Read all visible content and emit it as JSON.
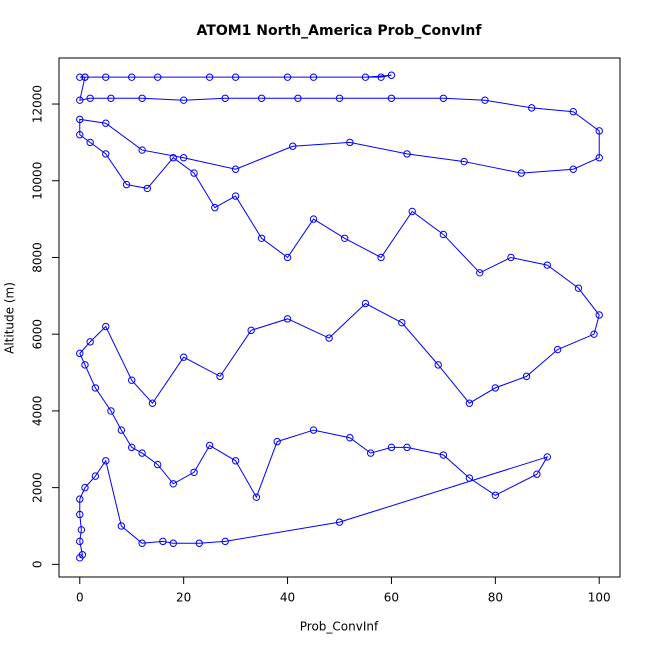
{
  "chart_data": {
    "type": "line",
    "title": "ATOM1 North_America Prob_ConvInf",
    "x_label": "Prob_ConvInf",
    "y_label": "Altitude (m)",
    "xlim": [
      -4,
      104
    ],
    "ylim": [
      -330,
      13200
    ],
    "xticks": [
      0,
      20,
      40,
      60,
      80,
      100
    ],
    "yticks": [
      0,
      2000,
      4000,
      6000,
      8000,
      10000,
      12000
    ],
    "x": [
      0,
      0.5,
      0,
      0.3,
      0,
      0,
      1,
      3,
      5,
      8,
      12,
      16,
      18,
      23,
      28,
      50,
      90,
      88,
      80,
      75,
      70,
      63,
      60,
      56,
      52,
      45,
      38,
      34,
      30,
      25,
      22,
      18,
      15,
      12,
      10,
      8,
      6,
      3,
      1,
      0,
      2,
      5,
      10,
      14,
      20,
      27,
      33,
      40,
      48,
      55,
      62,
      69,
      75,
      80,
      86,
      92,
      99,
      100,
      96,
      90,
      83,
      77,
      70,
      64,
      58,
      51,
      45,
      40,
      35,
      30,
      26,
      22,
      18,
      13,
      9,
      5,
      2,
      0,
      0,
      5,
      12,
      20,
      30,
      41,
      52,
      63,
      74,
      85,
      95,
      100,
      100,
      95,
      87,
      78,
      70,
      60,
      50,
      42,
      35,
      28,
      20,
      12,
      6,
      2,
      0,
      1,
      10,
      25,
      40,
      55,
      60,
      58,
      45,
      30,
      15,
      5,
      1,
      0
    ],
    "series": [
      {
        "color": "#0000ff",
        "values": [
          170,
          250,
          600,
          900,
          1300,
          1700,
          2000,
          2300,
          2700,
          1000,
          550,
          600,
          550,
          550,
          600,
          1100,
          2800,
          2350,
          1800,
          2250,
          2850,
          3050,
          3050,
          2900,
          3300,
          3500,
          3200,
          1750,
          2700,
          3100,
          2400,
          2100,
          2600,
          2900,
          3050,
          3500,
          4000,
          4600,
          5200,
          5500,
          5800,
          6200,
          4800,
          4200,
          5400,
          4900,
          6100,
          6400,
          5900,
          6800,
          6300,
          5200,
          4200,
          4600,
          4900,
          5600,
          6000,
          6500,
          7200,
          7800,
          8000,
          7600,
          8600,
          9200,
          8000,
          8500,
          9000,
          8000,
          8500,
          9600,
          9300,
          10200,
          10600,
          9800,
          9900,
          10700,
          11000,
          11200,
          11600,
          11500,
          10800,
          10600,
          10300,
          10900,
          11000,
          10700,
          10500,
          10200,
          10300,
          10600,
          11300,
          11800,
          11900,
          12100,
          12150,
          12150,
          12150,
          12150,
          12150,
          12150,
          12100,
          12150,
          12150,
          12150,
          12100,
          12700,
          12700,
          12700,
          12700,
          12700,
          12750,
          12700,
          12700,
          12700,
          12700,
          12700,
          12700,
          12700
        ]
      }
    ]
  }
}
